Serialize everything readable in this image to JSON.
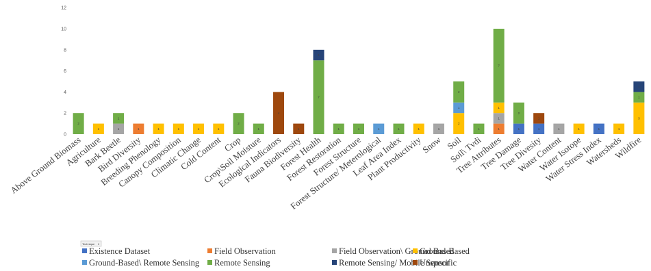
{
  "chart_data": {
    "type": "bar",
    "stacked": true,
    "categories": [
      "Above Ground Biomass",
      "Agriculture",
      "Bark Beetle",
      "Bird Diversity",
      "Breeding Phenology",
      "Canopy Composition",
      "Climatic Change",
      "Cold Content",
      "Crop",
      "Crop\\Soil Moisture",
      "Ecological Indicators",
      "Fauna Biodiversity",
      "Forest Health",
      "Forest Restoration",
      "Forest Structure",
      "Forest Structure/ Meterological",
      "Leaf Area Index",
      "Plant  Productivity",
      "Snow",
      "Soil",
      "Soil\\ Tvdi",
      "Tree Attributes",
      "Tree Damage",
      "Tree Divesity",
      "Water Content",
      "Water Isotope",
      "Water Stress Index",
      "Watersheds",
      "Wildfire"
    ],
    "series": [
      {
        "name": "Existence Dataset",
        "color": "#4472C4",
        "values": [
          0,
          0,
          0,
          0,
          0,
          0,
          0,
          0,
          0,
          0,
          0,
          0,
          0,
          0,
          0,
          0,
          0,
          0,
          0,
          0,
          0,
          0,
          1,
          1,
          0,
          0,
          1,
          0,
          0
        ]
      },
      {
        "name": "Field Observation",
        "color": "#ED7D31",
        "values": [
          0,
          0,
          0,
          1,
          0,
          0,
          0,
          0,
          0,
          0,
          0,
          0,
          0,
          0,
          0,
          0,
          0,
          0,
          0,
          0,
          0,
          1,
          0,
          0,
          0,
          0,
          0,
          0,
          0
        ]
      },
      {
        "name": "Field Observation\\ Ground Based",
        "color": "#A5A5A5",
        "values": [
          0,
          0,
          1,
          0,
          0,
          0,
          0,
          0,
          0,
          0,
          0,
          0,
          0,
          0,
          0,
          0,
          0,
          0,
          1,
          0,
          0,
          1,
          0,
          0,
          1,
          0,
          0,
          0,
          0
        ]
      },
      {
        "name": "Ground-Based",
        "color": "#FFC000",
        "values": [
          0,
          1,
          0,
          0,
          1,
          1,
          1,
          1,
          0,
          0,
          0,
          0,
          0,
          0,
          0,
          0,
          0,
          1,
          0,
          2,
          0,
          1,
          0,
          0,
          0,
          1,
          0,
          1,
          3
        ]
      },
      {
        "name": "Ground-Based\\ Remote Sensing",
        "color": "#5B9BD5",
        "values": [
          0,
          0,
          0,
          0,
          0,
          0,
          0,
          0,
          0,
          0,
          0,
          0,
          0,
          0,
          0,
          1,
          0,
          0,
          0,
          1,
          0,
          0,
          0,
          0,
          0,
          0,
          0,
          0,
          0
        ]
      },
      {
        "name": "Remote Sensing",
        "color": "#70AD47",
        "values": [
          2,
          0,
          1,
          0,
          0,
          0,
          0,
          0,
          2,
          1,
          0,
          0,
          7,
          1,
          1,
          0,
          1,
          0,
          0,
          2,
          1,
          7,
          2,
          0,
          0,
          0,
          0,
          0,
          1
        ]
      },
      {
        "name": "Remote Sensing/ Mobile Sensor",
        "color": "#264478",
        "values": [
          0,
          0,
          0,
          0,
          0,
          0,
          0,
          0,
          0,
          0,
          0,
          0,
          1,
          0,
          0,
          0,
          0,
          0,
          0,
          0,
          0,
          0,
          0,
          0,
          0,
          0,
          0,
          0,
          1
        ]
      },
      {
        "name": "Unspecific",
        "color": "#9E480E",
        "values": [
          0,
          0,
          0,
          0,
          0,
          0,
          0,
          0,
          0,
          0,
          4,
          1,
          0,
          0,
          0,
          0,
          0,
          0,
          0,
          0,
          0,
          0,
          0,
          1,
          0,
          0,
          0,
          0,
          0
        ]
      }
    ],
    "yticks": [
      "0",
      "2",
      "4",
      "6",
      "8",
      "10",
      "12"
    ],
    "ylim": [
      0,
      12
    ],
    "grid": false,
    "legend_position": "bottom",
    "legend_title": "Technique",
    "xlabel": "",
    "ylabel": ""
  }
}
